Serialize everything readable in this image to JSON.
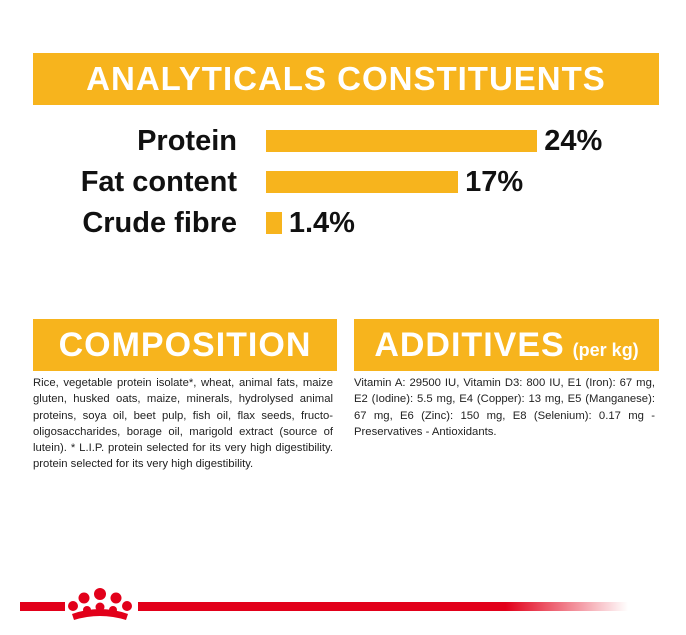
{
  "chart_data": {
    "type": "bar",
    "orientation": "horizontal",
    "title": "ANALYTICALS CONSTITUENTS",
    "categories": [
      "Protein",
      "Fat content",
      "Crude fibre"
    ],
    "values": [
      24,
      17,
      1.4
    ],
    "value_labels": [
      "24%",
      "17%",
      "1.4%"
    ],
    "color": "#f7b41d"
  },
  "composition": {
    "title": "COMPOSITION",
    "text": "Rice, vegetable protein isolate*, wheat, animal fats, maize gluten, husked oats, maize, minerals, hydrolysed animal proteins, soya oil, beet pulp, fish oil, flax seeds, fructo-oligosaccharides, borage oil, marigold extract (source of lutein). * L.I.P. protein selected for its very high digestibility. protein selected for its very high digestibility."
  },
  "additives": {
    "title": "ADDITIVES",
    "subtitle": "(per kg)",
    "text": "Vitamin A: 29500 IU, Vitamin D3: 800 IU, E1 (Iron): 67 mg, E2 (Iodine): 5.5 mg, E4 (Copper): 13 mg, E5 (Manganese): 67 mg, E6 (Zinc): 150 mg, E8 (Selenium): 0.17 mg - Preservatives - Antioxidants."
  }
}
